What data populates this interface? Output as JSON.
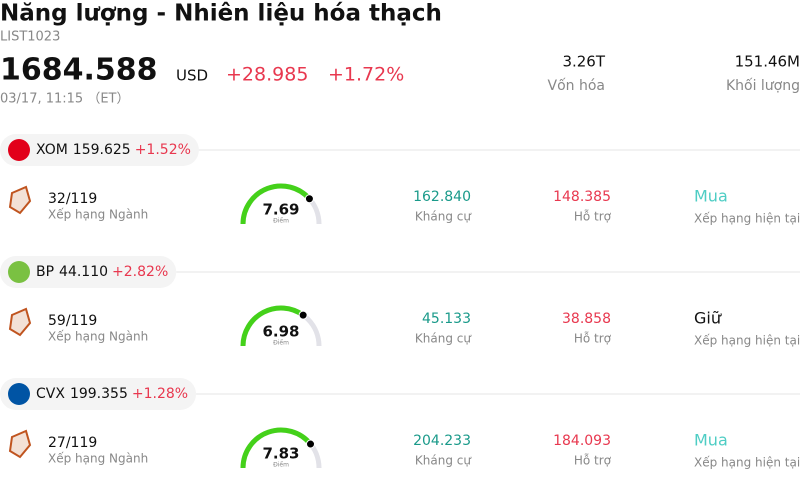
{
  "header": {
    "title": "Năng lượng - Nhiên liệu hóa thạch",
    "code": "LIST1023",
    "price": "1684.588",
    "currency": "USD",
    "change": "+28.985",
    "change_pct": "+1.72%",
    "time": "03/17, 11:15 （ET）",
    "stats": [
      {
        "value": "3.26T",
        "label": "Vốn hóa"
      },
      {
        "value": "151.46M",
        "label": "Khối lượng"
      }
    ]
  },
  "stocks": [
    {
      "ticker": "XOM",
      "price": "159.625",
      "change": "+1.52%",
      "logo_color": "#e2001a",
      "rank": "32/119",
      "rank_label": "Xếp hạng Ngành",
      "score": 7.69,
      "score_label": "Điểm",
      "resistance": "162.840",
      "resistance_label": "Kháng cự",
      "support": "148.385",
      "support_label": "Hỗ trợ",
      "rating": "Mua",
      "rating_color": "#4ecdc4",
      "rating_label": "Xếp hạng hiện tại"
    },
    {
      "ticker": "BP",
      "price": "44.110",
      "change": "+2.82%",
      "logo_color": "#7ac142",
      "rank": "59/119",
      "rank_label": "Xếp hạng Ngành",
      "score": 6.98,
      "score_label": "Điểm",
      "resistance": "45.133",
      "resistance_label": "Kháng cự",
      "support": "38.858",
      "support_label": "Hỗ trợ",
      "rating": "Giữ",
      "rating_color": "#111111",
      "rating_label": "Xếp hạng hiện tại"
    },
    {
      "ticker": "CVX",
      "price": "199.355",
      "change": "+1.28%",
      "logo_color": "#0054a4",
      "rank": "27/119",
      "rank_label": "Xếp hạng Ngành",
      "score": 7.83,
      "score_label": "Điểm",
      "resistance": "204.233",
      "resistance_label": "Kháng cự",
      "support": "184.093",
      "support_label": "Hỗ trợ",
      "rating": "Mua",
      "rating_color": "#4ecdc4",
      "rating_label": "Xếp hạng hiện tại"
    }
  ]
}
